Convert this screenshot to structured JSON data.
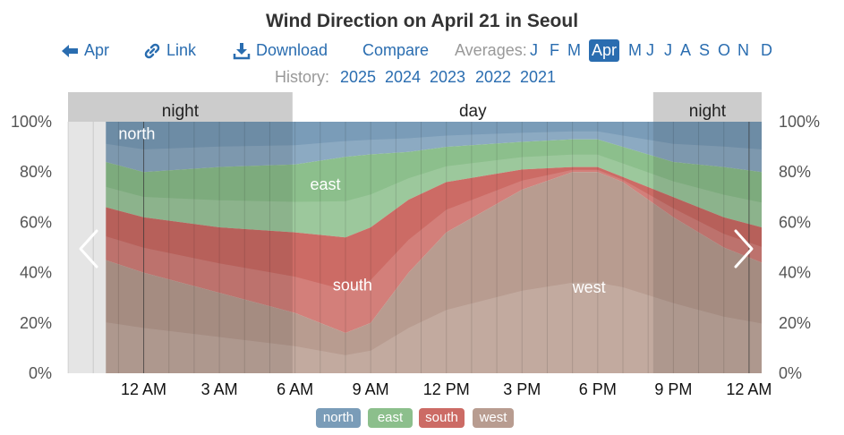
{
  "title": "Wind Direction on April 21 in Seoul",
  "nav": {
    "back_label": "Apr",
    "link_label": "Link",
    "download_label": "Download",
    "compare_label": "Compare",
    "averages_label": "Averages:",
    "months": [
      "J",
      "F",
      "M",
      "Apr",
      "M",
      "J",
      "J",
      "A",
      "S",
      "O",
      "N",
      "D"
    ],
    "active_month": "Apr"
  },
  "history": {
    "label": "History:",
    "years": [
      "2025",
      "2024",
      "2023",
      "2022",
      "2021"
    ]
  },
  "colors": {
    "north": "#7a9cb8",
    "east": "#8cbf8c",
    "south": "#cc6b65",
    "west": "#b89c90",
    "link": "#2a6db0",
    "night_band": "#cccccc",
    "grid": "#555555"
  },
  "chart_data": {
    "type": "area",
    "title": "Wind Direction on April 21 in Seoul",
    "x_unit": "hour of day (local)",
    "x_range": [
      -3,
      24.5
    ],
    "x_ticks": [
      "12 AM",
      "3 AM",
      "6 AM",
      "9 AM",
      "12 PM",
      "3 PM",
      "6 PM",
      "9 PM",
      "12 AM"
    ],
    "y_left_ticks": [
      "0%",
      "20%",
      "40%",
      "60%",
      "80%",
      "100%"
    ],
    "y_right_ticks": [
      "100%",
      "80%",
      "60%",
      "40%",
      "20%",
      "0%"
    ],
    "ylim": [
      0,
      100
    ],
    "periods": [
      {
        "label": "night",
        "from": -3,
        "to": 5.9
      },
      {
        "label": "day",
        "from": 5.9,
        "to": 20.2
      },
      {
        "label": "night",
        "from": 20.2,
        "to": 24.5
      }
    ],
    "bands": [
      {
        "name": "west",
        "label": "west"
      },
      {
        "name": "south",
        "label": "south"
      },
      {
        "name": "east",
        "label": "east"
      },
      {
        "name": "north",
        "label": "north"
      }
    ],
    "x": [
      -1.5,
      0,
      3,
      6,
      8,
      9,
      10.5,
      12,
      15,
      17,
      18,
      19,
      21,
      23,
      24.5
    ],
    "cumulative_percent": {
      "west": [
        45,
        40,
        32,
        24,
        16,
        20,
        40,
        56,
        73,
        80,
        80,
        76,
        62,
        50,
        44
      ],
      "south": [
        66,
        62,
        58,
        56,
        54,
        58,
        69,
        76,
        81,
        82,
        82,
        78,
        70,
        62,
        58
      ],
      "east": [
        84,
        80,
        82,
        83,
        86,
        87,
        88,
        90,
        92,
        93,
        93,
        90,
        84,
        82,
        80
      ],
      "north": [
        100,
        100,
        100,
        100,
        100,
        100,
        100,
        100,
        100,
        100,
        100,
        100,
        100,
        100,
        100
      ]
    }
  },
  "legend": [
    {
      "name": "north",
      "label": "north"
    },
    {
      "name": "east",
      "label": "east"
    },
    {
      "name": "south",
      "label": "south"
    },
    {
      "name": "west",
      "label": "west"
    }
  ]
}
